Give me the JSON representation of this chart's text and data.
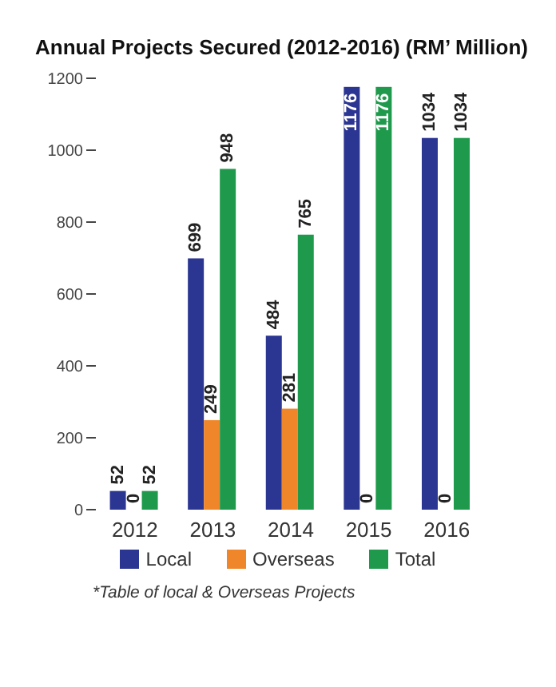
{
  "chart_data": {
    "type": "bar",
    "title": "Annual Projects Secured  (2012-2016) (RM’ Million)",
    "categories": [
      "2012",
      "2013",
      "2014",
      "2015",
      "2016"
    ],
    "series": [
      {
        "name": "Local",
        "color": "#2b3592",
        "values": [
          52,
          699,
          484,
          1176,
          1034
        ]
      },
      {
        "name": "Overseas",
        "color": "#f0862a",
        "values": [
          0,
          249,
          281,
          0,
          0
        ]
      },
      {
        "name": "Total",
        "color": "#1f9a4c",
        "values": [
          52,
          948,
          765,
          1176,
          1034
        ]
      }
    ],
    "ylim": [
      0,
      1200
    ],
    "yticks": [
      0,
      200,
      400,
      600,
      800,
      1000,
      1200
    ],
    "grid": false,
    "legend": "bottom",
    "data_labels": true,
    "annotations": [
      "*Table of local & Overseas Projects"
    ]
  }
}
